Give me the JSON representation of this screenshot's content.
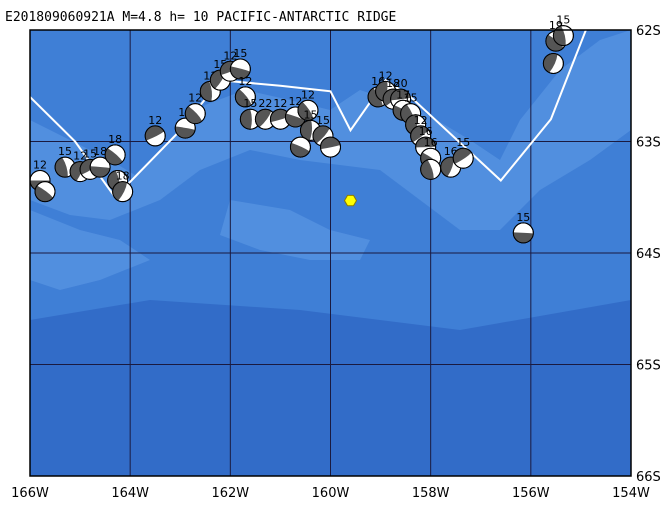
{
  "title": "E201809060921A  M=4.8  h= 10 PACIFIC-ANTARCTIC RIDGE",
  "colors": {
    "ocean": "#3f7fd6",
    "ocean_light": "#5a95e3",
    "ocean_deep": "#2d64c2",
    "ridge": "#ffffff",
    "grid": "#1a1a40",
    "epicenter": "#ffff00",
    "beachball_dark": "#555555",
    "beachball_light": "#ffffff"
  },
  "axes": {
    "lon_range": [
      -166,
      -154
    ],
    "lat_range": [
      -66,
      -62
    ],
    "x_ticks": [
      "166W",
      "164W",
      "162W",
      "160W",
      "158W",
      "156W",
      "154W"
    ],
    "y_ticks": [
      "62S",
      "63S",
      "64S",
      "65S",
      "66S"
    ]
  },
  "epicenter": {
    "lon": -159.6,
    "lat": -63.53,
    "symbol": "hexagon-icon"
  },
  "ridge_line": [
    [
      -166,
      -62.6
    ],
    [
      -165.1,
      -63.0
    ],
    [
      -164.3,
      -63.5
    ],
    [
      -163.0,
      -62.9
    ],
    [
      -162.2,
      -62.45
    ],
    [
      -161.0,
      -62.5
    ],
    [
      -160.0,
      -62.55
    ],
    [
      -159.6,
      -62.9
    ],
    [
      -158.9,
      -62.45
    ],
    [
      -158.4,
      -62.6
    ],
    [
      -156.6,
      -63.35
    ],
    [
      -155.6,
      -62.8
    ],
    [
      -154.9,
      -62.0
    ]
  ],
  "events": [
    {
      "lon": -165.8,
      "lat": -63.35,
      "depth": "12"
    },
    {
      "lon": -165.7,
      "lat": -63.45,
      "depth": ""
    },
    {
      "lon": -165.3,
      "lat": -63.23,
      "depth": "15"
    },
    {
      "lon": -165.0,
      "lat": -63.27,
      "depth": "12"
    },
    {
      "lon": -164.8,
      "lat": -63.25,
      "depth": "15"
    },
    {
      "lon": -164.6,
      "lat": -63.23,
      "depth": "18"
    },
    {
      "lon": -164.3,
      "lat": -63.12,
      "depth": "18"
    },
    {
      "lon": -164.25,
      "lat": -63.35,
      "depth": ""
    },
    {
      "lon": -164.15,
      "lat": -63.45,
      "depth": "18"
    },
    {
      "lon": -163.5,
      "lat": -62.95,
      "depth": "12"
    },
    {
      "lon": -162.9,
      "lat": -62.88,
      "depth": "14"
    },
    {
      "lon": -162.7,
      "lat": -62.75,
      "depth": "12"
    },
    {
      "lon": -162.4,
      "lat": -62.55,
      "depth": "11"
    },
    {
      "lon": -162.2,
      "lat": -62.45,
      "depth": "15"
    },
    {
      "lon": -162.0,
      "lat": -62.37,
      "depth": "12"
    },
    {
      "lon": -161.8,
      "lat": -62.35,
      "depth": "15"
    },
    {
      "lon": -161.7,
      "lat": -62.6,
      "depth": "12"
    },
    {
      "lon": -161.6,
      "lat": -62.8,
      "depth": "15"
    },
    {
      "lon": -161.3,
      "lat": -62.8,
      "depth": "22"
    },
    {
      "lon": -161.0,
      "lat": -62.8,
      "depth": "12"
    },
    {
      "lon": -160.7,
      "lat": -62.78,
      "depth": "12"
    },
    {
      "lon": -160.45,
      "lat": -62.72,
      "depth": "12"
    },
    {
      "lon": -160.4,
      "lat": -62.9,
      "depth": "15"
    },
    {
      "lon": -160.15,
      "lat": -62.95,
      "depth": "15"
    },
    {
      "lon": -160.0,
      "lat": -63.05,
      "depth": ""
    },
    {
      "lon": -160.6,
      "lat": -63.05,
      "depth": ""
    },
    {
      "lon": -159.05,
      "lat": -62.6,
      "depth": "16"
    },
    {
      "lon": -158.9,
      "lat": -62.55,
      "depth": "12"
    },
    {
      "lon": -158.75,
      "lat": -62.62,
      "depth": "18"
    },
    {
      "lon": -158.6,
      "lat": -62.62,
      "depth": "20"
    },
    {
      "lon": -158.55,
      "lat": -62.72,
      "depth": "17"
    },
    {
      "lon": -158.4,
      "lat": -62.75,
      "depth": "15"
    },
    {
      "lon": -158.3,
      "lat": -62.85,
      "depth": ""
    },
    {
      "lon": -158.2,
      "lat": -62.95,
      "depth": "12"
    },
    {
      "lon": -158.1,
      "lat": -63.05,
      "depth": "16"
    },
    {
      "lon": -158.0,
      "lat": -63.15,
      "depth": "16"
    },
    {
      "lon": -158.0,
      "lat": -63.25,
      "depth": ""
    },
    {
      "lon": -157.6,
      "lat": -63.23,
      "depth": "16"
    },
    {
      "lon": -157.35,
      "lat": -63.15,
      "depth": "15"
    },
    {
      "lon": -156.15,
      "lat": -63.82,
      "depth": "15"
    },
    {
      "lon": -155.5,
      "lat": -62.1,
      "depth": "19"
    },
    {
      "lon": -155.35,
      "lat": -62.05,
      "depth": "15"
    },
    {
      "lon": -155.55,
      "lat": -62.3,
      "depth": ""
    }
  ]
}
